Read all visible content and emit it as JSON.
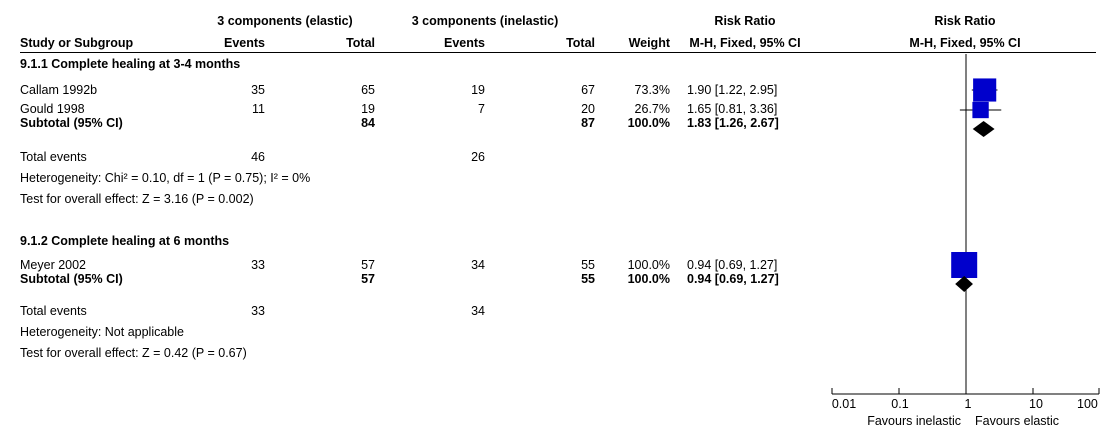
{
  "header": {
    "group1_label": "3 components (elastic)",
    "group2_label": "3 components (inelastic)",
    "rr_label": "Risk Ratio",
    "rr_method": "M-H, Fixed, 95% CI",
    "plot_label": "Risk Ratio",
    "plot_method": "M-H, Fixed, 95% CI",
    "col_study": "Study or Subgroup",
    "col_events1": "Events",
    "col_total1": "Total",
    "col_events2": "Events",
    "col_total2": "Total",
    "col_weight": "Weight"
  },
  "groups": [
    {
      "title": "9.1.1 Complete healing at 3-4 months",
      "studies": [
        {
          "name": "Callam 1992b",
          "events1": "35",
          "total1": "65",
          "events2": "19",
          "total2": "67",
          "weight": "73.3%",
          "ci_text": "1.90 [1.22, 2.95]"
        },
        {
          "name": "Gould 1998",
          "events1": "11",
          "total1": "19",
          "events2": "7",
          "total2": "20",
          "weight": "26.7%",
          "ci_text": "1.65 [0.81, 3.36]"
        }
      ],
      "subtotal": {
        "label": "Subtotal (95% CI)",
        "total1": "84",
        "total2": "87",
        "weight": "100.0%",
        "ci_text": "1.83 [1.26, 2.67]"
      },
      "total_events": {
        "label": "Total events",
        "events1": "46",
        "events2": "26"
      },
      "heterogeneity": "Heterogeneity: Chi² = 0.10, df = 1 (P = 0.75); I² = 0%",
      "overall": "Test for overall effect: Z = 3.16 (P = 0.002)"
    },
    {
      "title": "9.1.2 Complete healing at 6 months",
      "studies": [
        {
          "name": "Meyer 2002",
          "events1": "33",
          "total1": "57",
          "events2": "34",
          "total2": "55",
          "weight": "100.0%",
          "ci_text": "0.94 [0.69, 1.27]"
        }
      ],
      "subtotal": {
        "label": "Subtotal (95% CI)",
        "total1": "57",
        "total2": "55",
        "weight": "100.0%",
        "ci_text": "0.94 [0.69, 1.27]"
      },
      "total_events": {
        "label": "Total events",
        "events1": "33",
        "events2": "34"
      },
      "heterogeneity": "Heterogeneity: Not applicable",
      "overall": "Test for overall effect: Z = 0.42 (P = 0.67)"
    }
  ],
  "axis": {
    "ticks": [
      "0.01",
      "0.1",
      "1",
      "10",
      "100"
    ],
    "favours_left": "Favours inelastic",
    "favours_right": "Favours elastic"
  },
  "chart_data": {
    "type": "forest",
    "scale": "log",
    "xlim": [
      0.01,
      100
    ],
    "tick_values": [
      0.01,
      0.1,
      1,
      10,
      100
    ],
    "colors": {
      "study": "#0000cc",
      "diamond": "#000000"
    },
    "studies": [
      {
        "name": "Callam 1992b",
        "rr": 1.9,
        "lower": 1.22,
        "upper": 2.95,
        "weight": 73.3
      },
      {
        "name": "Gould 1998",
        "rr": 1.65,
        "lower": 0.81,
        "upper": 3.36,
        "weight": 26.7
      },
      {
        "name": "Meyer 2002",
        "rr": 0.94,
        "lower": 0.69,
        "upper": 1.27,
        "weight": 100.0
      }
    ],
    "subtotals": [
      {
        "name": "Subtotal 9.1.1",
        "rr": 1.83,
        "lower": 1.26,
        "upper": 2.67
      },
      {
        "name": "Subtotal 9.1.2",
        "rr": 0.94,
        "lower": 0.69,
        "upper": 1.27
      }
    ]
  }
}
